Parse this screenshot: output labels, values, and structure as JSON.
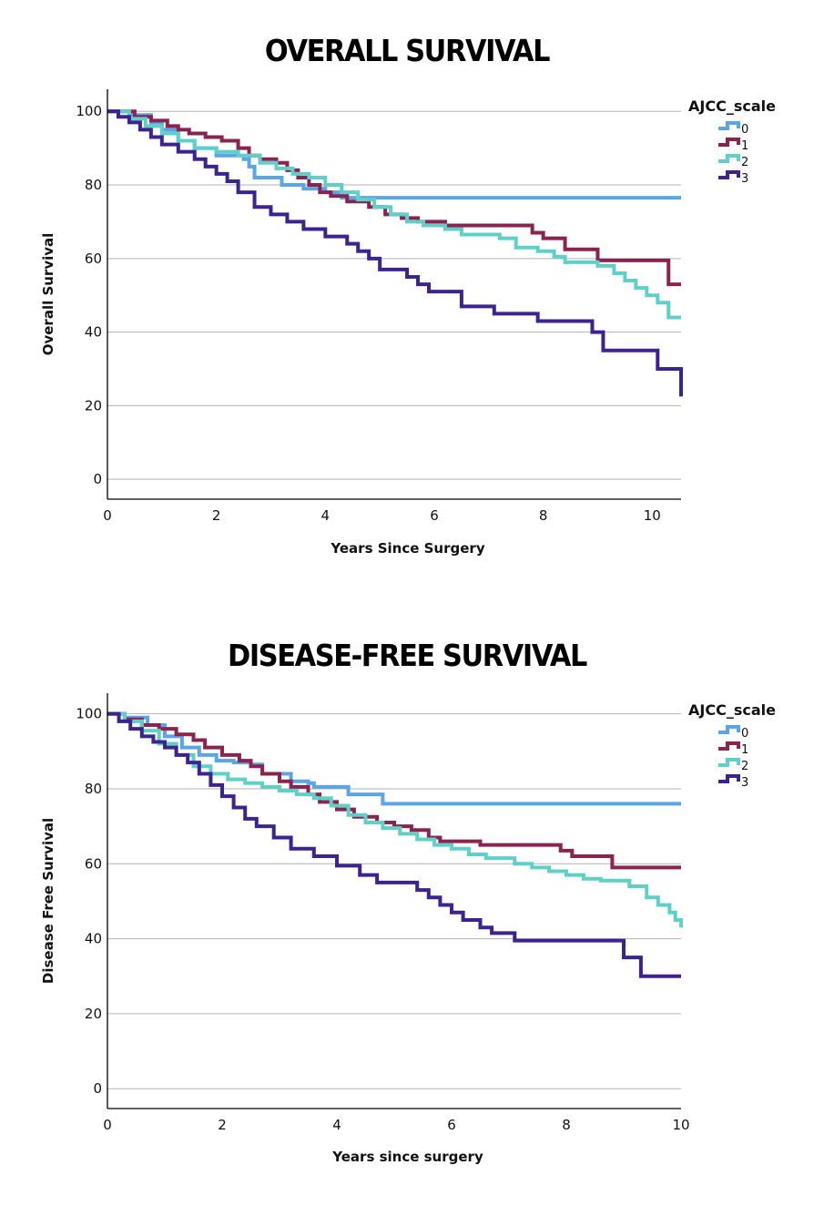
{
  "chart_data": [
    {
      "type": "line",
      "subtype": "kaplan-meier-step",
      "title": "OVERALL SURVIVAL",
      "xlabel": "Years Since Surgery",
      "ylabel": "Overall Survival",
      "xlim": [
        0,
        10.53
      ],
      "ylim": [
        -5.4,
        106
      ],
      "xticks": [
        "0",
        "2",
        "4",
        "6",
        "8",
        "10"
      ],
      "yticks": [
        "0",
        "20",
        "40",
        "60",
        "80",
        "100"
      ],
      "grid": "horizontal",
      "legend": {
        "title": "AJCC_scale",
        "position": "top-right"
      },
      "series": [
        {
          "name": "0",
          "color": "#5aa5e6",
          "x": [
            0,
            0.4,
            0.8,
            1.0,
            1.3,
            1.6,
            2.0,
            2.5,
            2.6,
            2.7,
            3.2,
            3.6,
            4.0,
            4.3,
            10.53
          ],
          "y": [
            100,
            99,
            97,
            95,
            92,
            90,
            88,
            87,
            85,
            82,
            80,
            79,
            78,
            76.5,
            76.5
          ]
        },
        {
          "name": "1",
          "color": "#8b2350",
          "x": [
            0,
            0.5,
            0.8,
            1.1,
            1.3,
            1.5,
            1.8,
            2.1,
            2.4,
            2.6,
            2.8,
            3.1,
            3.3,
            3.5,
            3.7,
            3.9,
            4.1,
            4.4,
            4.8,
            5.1,
            5.4,
            5.7,
            6.2,
            7.8,
            8.0,
            8.4,
            9.0,
            10.3,
            10.53
          ],
          "y": [
            100,
            98.5,
            97.5,
            96,
            95,
            94,
            93,
            92,
            90,
            88,
            87,
            86,
            84,
            82,
            80,
            78,
            77,
            75.5,
            74,
            72,
            71,
            70,
            69,
            67,
            65.5,
            62.5,
            59.5,
            53,
            53
          ]
        },
        {
          "name": "2",
          "color": "#5fd0c9",
          "x": [
            0,
            0.4,
            0.7,
            1.0,
            1.3,
            1.6,
            2.0,
            2.4,
            2.8,
            3.1,
            3.4,
            3.7,
            4.0,
            4.3,
            4.6,
            4.9,
            5.2,
            5.5,
            5.8,
            6.2,
            6.5,
            7.2,
            7.5,
            7.9,
            8.2,
            8.4,
            9.0,
            9.3,
            9.5,
            9.7,
            9.9,
            10.1,
            10.3,
            10.53
          ],
          "y": [
            100,
            98,
            96,
            94,
            92,
            90,
            89,
            88,
            86,
            84.5,
            83,
            82,
            80,
            78,
            76,
            74,
            72,
            70,
            69,
            68,
            66.5,
            65.5,
            63,
            62,
            60.5,
            59,
            58,
            56,
            54,
            52,
            50,
            48,
            44,
            44
          ]
        },
        {
          "name": "3",
          "color": "#3c2390",
          "x": [
            0,
            0.2,
            0.4,
            0.6,
            0.8,
            1.0,
            1.3,
            1.6,
            1.8,
            2.0,
            2.2,
            2.4,
            2.7,
            3.0,
            3.3,
            3.6,
            4.0,
            4.4,
            4.6,
            4.8,
            5.0,
            5.5,
            5.7,
            5.9,
            6.5,
            7.1,
            7.9,
            8.9,
            9.1,
            10.1,
            10.53
          ],
          "y": [
            100,
            98.5,
            97,
            95,
            93,
            91,
            89,
            87,
            85,
            83,
            81,
            78,
            74,
            72,
            70,
            68,
            66,
            64,
            62,
            60,
            57,
            55,
            53,
            51,
            47,
            45,
            43,
            40,
            35,
            30,
            22.5
          ]
        }
      ]
    },
    {
      "type": "line",
      "subtype": "kaplan-meier-step",
      "title": "DISEASE-FREE SURVIVAL",
      "xlabel": "Years since surgery",
      "ylabel": "Disease Free Survival",
      "xlim": [
        0,
        10
      ],
      "ylim": [
        -5.3,
        105.5
      ],
      "xticks": [
        "0",
        "2",
        "4",
        "6",
        "8",
        "10"
      ],
      "yticks": [
        "0",
        "20",
        "40",
        "60",
        "80",
        "100"
      ],
      "grid": "horizontal",
      "legend": {
        "title": "AJCC_scale",
        "position": "top-right"
      },
      "series": [
        {
          "name": "0",
          "color": "#5aa5e6",
          "x": [
            0,
            0.3,
            0.7,
            1.0,
            1.3,
            1.6,
            1.9,
            2.2,
            2.5,
            2.7,
            3.2,
            3.5,
            3.6,
            4.2,
            4.8,
            10
          ],
          "y": [
            100,
            99,
            97,
            94,
            91,
            89,
            87.5,
            87,
            86.5,
            84,
            82,
            81.5,
            80.5,
            78.5,
            76,
            76
          ]
        },
        {
          "name": "1",
          "color": "#8b2350",
          "x": [
            0,
            0.3,
            0.6,
            0.9,
            1.2,
            1.5,
            1.7,
            2.0,
            2.3,
            2.5,
            2.7,
            3.0,
            3.2,
            3.5,
            3.7,
            4.0,
            4.3,
            4.7,
            5.0,
            5.3,
            5.6,
            5.8,
            6.5,
            7.9,
            8.1,
            8.8,
            10
          ],
          "y": [
            100,
            98.5,
            97,
            96,
            94.5,
            93,
            91,
            89,
            87.5,
            86,
            84,
            82,
            80.5,
            78.5,
            76.5,
            74.5,
            72.5,
            71,
            70,
            69,
            67,
            66,
            65,
            63.5,
            62,
            59,
            59
          ]
        },
        {
          "name": "2",
          "color": "#5fd0c9",
          "x": [
            0,
            0.3,
            0.6,
            0.9,
            1.2,
            1.5,
            1.8,
            2.1,
            2.4,
            2.7,
            3.0,
            3.3,
            3.6,
            3.9,
            4.2,
            4.5,
            4.8,
            5.1,
            5.4,
            5.7,
            6.0,
            6.3,
            6.6,
            7.1,
            7.4,
            7.7,
            8.0,
            8.3,
            8.6,
            9.1,
            9.4,
            9.6,
            9.8,
            9.9,
            10
          ],
          "y": [
            100,
            98,
            95.5,
            92,
            89,
            86,
            84,
            82.5,
            81.5,
            80.5,
            79.5,
            78.5,
            77.5,
            75.5,
            73,
            71,
            69.5,
            68,
            66.5,
            65,
            64,
            62.5,
            61.5,
            60,
            59,
            58,
            57,
            56,
            55.5,
            54,
            51,
            49,
            47,
            45,
            43
          ]
        },
        {
          "name": "3",
          "color": "#3c2390",
          "x": [
            0,
            0.2,
            0.4,
            0.6,
            0.8,
            1.0,
            1.2,
            1.4,
            1.6,
            1.8,
            2.0,
            2.2,
            2.4,
            2.6,
            2.9,
            3.2,
            3.6,
            4.0,
            4.4,
            4.7,
            5.4,
            5.6,
            5.8,
            6.0,
            6.2,
            6.5,
            6.7,
            7.1,
            9.0,
            9.3,
            10
          ],
          "y": [
            100,
            98,
            96,
            94,
            92.5,
            91,
            89,
            87,
            84,
            81,
            78,
            75,
            72,
            70,
            67,
            64,
            62,
            59.5,
            57,
            55,
            53,
            51,
            49,
            47,
            45,
            43,
            41.5,
            39.5,
            35,
            30,
            30
          ]
        }
      ]
    }
  ]
}
